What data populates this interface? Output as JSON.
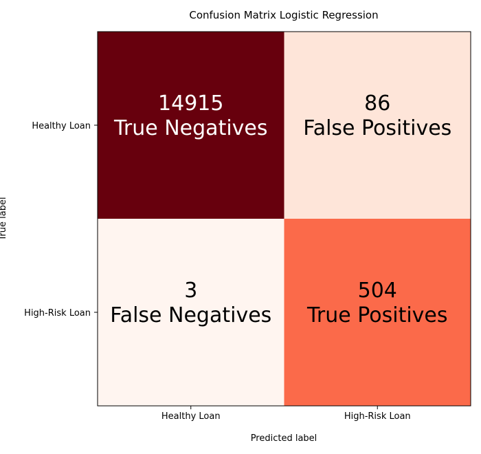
{
  "chart_data": {
    "type": "heatmap",
    "title": "Confusion Matrix Logistic Regression",
    "xlabel": "Predicted label",
    "ylabel": "True label",
    "x_categories": [
      "Healthy Loan",
      "High-Risk Loan"
    ],
    "y_categories": [
      "Healthy Loan",
      "High-Risk Loan"
    ],
    "colormap": "Reds",
    "values": [
      [
        14915,
        86
      ],
      [
        3,
        504
      ]
    ],
    "cell_labels": [
      [
        "True Negatives",
        "False Positives"
      ],
      [
        "False Negatives",
        "True Positives"
      ]
    ],
    "cell_colors": [
      [
        "#67000d",
        "#fee5d9"
      ],
      [
        "#fff5f0",
        "#fb6a4a"
      ]
    ],
    "cell_text_colors": [
      [
        "#ffffff",
        "#000000"
      ],
      [
        "#000000",
        "#000000"
      ]
    ],
    "grid": false
  }
}
